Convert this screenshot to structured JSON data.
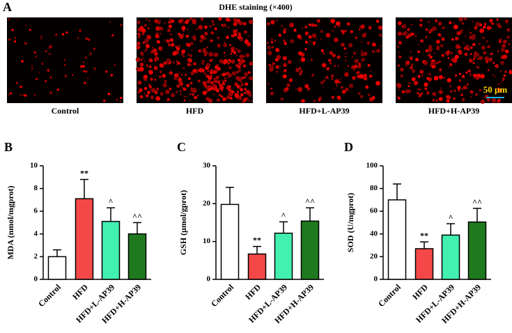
{
  "panel_a": {
    "label": "A",
    "title": "DHE staining (×400)",
    "images": [
      "Control",
      "HFD",
      "HFD+L-AP39",
      "HFD+H-AP39"
    ],
    "scale_bar": "50 μm"
  },
  "chart_data": [
    {
      "type": "bar",
      "panel": "B",
      "ylabel": "MDA (nmol/mgprot)",
      "categories": [
        "Control",
        "HFD",
        "HFD+L-AP39",
        "HFD+H-AP39"
      ],
      "values": [
        2.0,
        7.1,
        5.1,
        4.0
      ],
      "errors": [
        0.6,
        1.7,
        1.2,
        1.0
      ],
      "annotations": [
        null,
        "**",
        "^",
        "^^"
      ],
      "colors": [
        "#ffffff",
        "#f44848",
        "#42f0b0",
        "#1f7a1f"
      ],
      "ylim": [
        0,
        10
      ],
      "yticks": [
        0,
        2,
        4,
        6,
        8,
        10
      ]
    },
    {
      "type": "bar",
      "panel": "C",
      "ylabel": "GSH (μmol/gprot)",
      "categories": [
        "Control",
        "HFD",
        "HFD+L-AP39",
        "HFD+H-AP39"
      ],
      "values": [
        19.8,
        6.7,
        12.2,
        15.4
      ],
      "errors": [
        4.5,
        2.0,
        3.0,
        3.5
      ],
      "annotations": [
        null,
        "**",
        "^",
        "^^"
      ],
      "colors": [
        "#ffffff",
        "#f44848",
        "#42f0b0",
        "#1f7a1f"
      ],
      "ylim": [
        0,
        30
      ],
      "yticks": [
        0,
        10,
        20,
        30
      ]
    },
    {
      "type": "bar",
      "panel": "D",
      "ylabel": "SOD (U/mgprot)",
      "categories": [
        "Control",
        "HFD",
        "HFD+L-AP39",
        "HFD+H-AP39"
      ],
      "values": [
        70,
        27,
        39,
        50.5
      ],
      "errors": [
        14,
        6,
        10,
        12
      ],
      "annotations": [
        null,
        "**",
        "^",
        "^^"
      ],
      "colors": [
        "#ffffff",
        "#f44848",
        "#42f0b0",
        "#1f7a1f"
      ],
      "ylim": [
        0,
        100
      ],
      "yticks": [
        0,
        20,
        40,
        60,
        80,
        100
      ]
    }
  ]
}
